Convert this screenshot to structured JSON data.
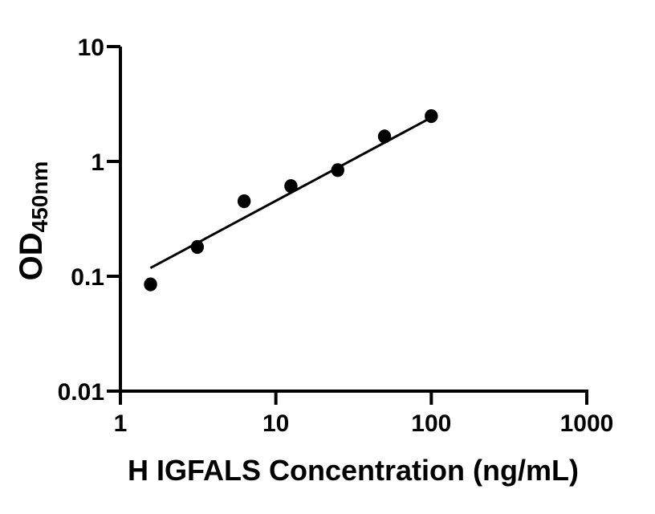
{
  "figure": {
    "background_color": "#ffffff",
    "ink_color": "#000000"
  },
  "chart_data": {
    "type": "scatter",
    "title": "",
    "xlabel": "H IGFALS Concentration (ng/mL)",
    "ylabel_main": "OD",
    "ylabel_subscript": "450nm",
    "x_scale": "log10",
    "y_scale": "log10",
    "xlim": [
      1,
      1000
    ],
    "ylim": [
      0.01,
      10
    ],
    "x_ticks": [
      1,
      10,
      100,
      1000
    ],
    "y_ticks": [
      0.01,
      0.1,
      1,
      10
    ],
    "x_tick_labels": [
      "1",
      "10",
      "100",
      "1000"
    ],
    "y_tick_labels": [
      "0.01",
      "0.1",
      "1",
      "10"
    ],
    "grid": false,
    "legend": "none",
    "series": [
      {
        "name": "standard-points",
        "type": "scatter",
        "marker": "filled-circle",
        "color": "#000000",
        "x": [
          1.5625,
          3.125,
          6.25,
          12.5,
          25,
          50,
          100
        ],
        "y": [
          0.085,
          0.18,
          0.45,
          0.61,
          0.84,
          1.65,
          2.48
        ]
      },
      {
        "name": "fit-line",
        "type": "line",
        "color": "#000000",
        "x": [
          1.56,
          108
        ],
        "y": [
          0.118,
          2.55
        ]
      }
    ]
  }
}
